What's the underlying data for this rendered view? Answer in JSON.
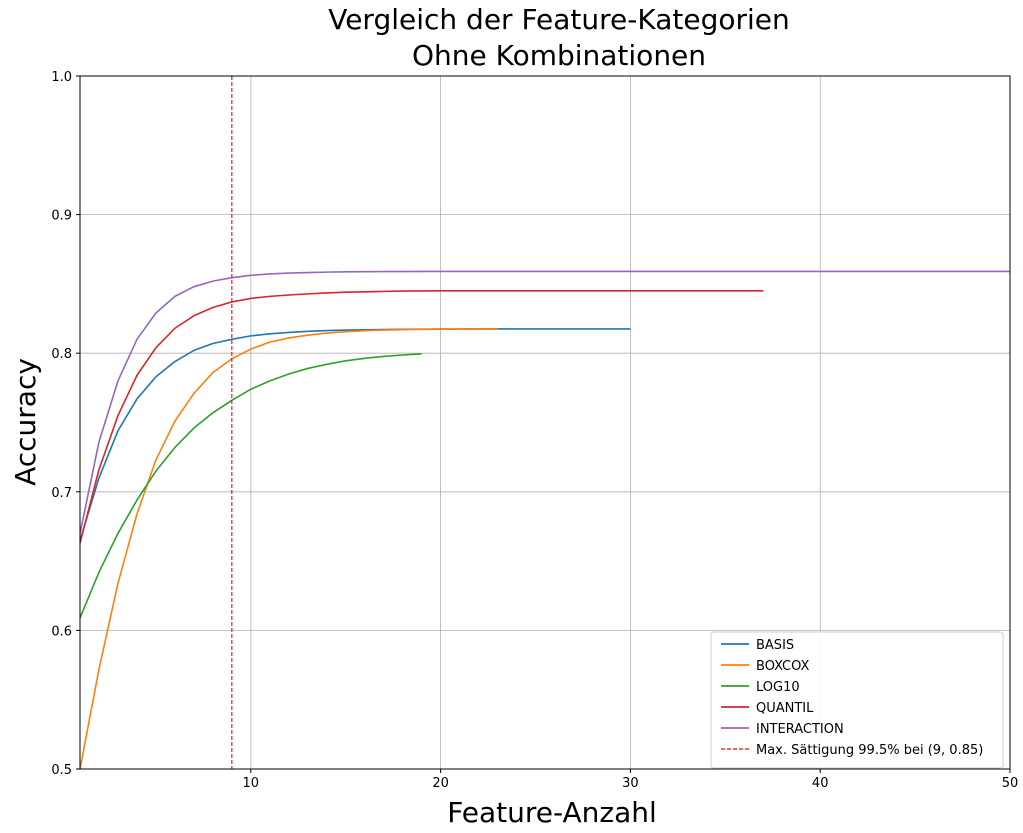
{
  "chart_data": {
    "type": "line",
    "title_lines": [
      "Vergleich der Feature-Kategorien",
      "Ohne Kombinationen"
    ],
    "xlabel": "Feature-Anzahl",
    "ylabel": "Accuracy",
    "xlim": [
      1,
      50
    ],
    "ylim": [
      0.5,
      1.0
    ],
    "xticks": [
      10,
      20,
      30,
      40,
      50
    ],
    "yticks": [
      0.5,
      0.6,
      0.7,
      0.8,
      0.9,
      1.0
    ],
    "ytick_labels": [
      "0.5",
      "0.6",
      "0.7",
      "0.8",
      "0.9",
      "1.0"
    ],
    "grid": true,
    "legend_position": "lower-right",
    "series": [
      {
        "name": "BASIS",
        "color": "#1f77b4",
        "x": [
          1,
          2,
          3,
          4,
          5,
          6,
          7,
          8,
          9,
          10,
          11,
          12,
          13,
          14,
          15,
          16,
          17,
          18,
          19,
          20,
          21,
          22,
          23,
          24,
          25,
          26,
          27,
          28,
          29,
          30
        ],
        "y": [
          0.665,
          0.71,
          0.744,
          0.767,
          0.783,
          0.794,
          0.802,
          0.807,
          0.81,
          0.8125,
          0.814,
          0.815,
          0.8158,
          0.8163,
          0.8167,
          0.8169,
          0.8171,
          0.8172,
          0.8173,
          0.8174,
          0.8174,
          0.8175,
          0.8175,
          0.8175,
          0.8175,
          0.8175,
          0.8175,
          0.8175,
          0.8175,
          0.8175
        ]
      },
      {
        "name": "BOXCOX",
        "color": "#ff7f0e",
        "x": [
          1,
          2,
          3,
          4,
          5,
          6,
          7,
          8,
          9,
          10,
          11,
          12,
          13,
          14,
          15,
          16,
          17,
          18,
          19,
          20,
          21,
          22,
          23
        ],
        "y": [
          0.5,
          0.572,
          0.634,
          0.684,
          0.723,
          0.751,
          0.771,
          0.786,
          0.796,
          0.803,
          0.808,
          0.811,
          0.813,
          0.8145,
          0.8155,
          0.8162,
          0.8167,
          0.817,
          0.8172,
          0.8173,
          0.8174,
          0.8175,
          0.8175
        ]
      },
      {
        "name": "LOG10",
        "color": "#2ca02c",
        "x": [
          1,
          2,
          3,
          4,
          5,
          6,
          7,
          8,
          9,
          10,
          11,
          12,
          13,
          14,
          15,
          16,
          17,
          18,
          19
        ],
        "y": [
          0.609,
          0.642,
          0.67,
          0.694,
          0.715,
          0.732,
          0.746,
          0.757,
          0.766,
          0.774,
          0.78,
          0.785,
          0.789,
          0.792,
          0.7945,
          0.7963,
          0.7977,
          0.7987,
          0.7995
        ]
      },
      {
        "name": "QUANTIL",
        "color": "#d62728",
        "x": [
          1,
          2,
          3,
          4,
          5,
          6,
          7,
          8,
          9,
          10,
          11,
          12,
          13,
          14,
          15,
          16,
          17,
          18,
          19,
          20,
          21,
          22,
          23,
          24,
          25,
          26,
          27,
          28,
          29,
          30,
          31,
          32,
          33,
          34,
          35,
          36,
          37
        ],
        "y": [
          0.663,
          0.716,
          0.755,
          0.784,
          0.804,
          0.818,
          0.827,
          0.833,
          0.837,
          0.8395,
          0.841,
          0.842,
          0.8428,
          0.8435,
          0.844,
          0.8443,
          0.8446,
          0.8448,
          0.8449,
          0.845,
          0.845,
          0.845,
          0.845,
          0.845,
          0.845,
          0.845,
          0.845,
          0.845,
          0.845,
          0.845,
          0.845,
          0.845,
          0.845,
          0.845,
          0.845,
          0.845,
          0.845
        ]
      },
      {
        "name": "INTERACTION",
        "color": "#9467bd",
        "x": [
          1,
          2,
          3,
          4,
          5,
          6,
          7,
          8,
          9,
          10,
          11,
          12,
          13,
          14,
          15,
          16,
          17,
          18,
          19,
          20,
          25,
          30,
          35,
          40,
          45,
          50
        ],
        "y": [
          0.67,
          0.736,
          0.78,
          0.81,
          0.829,
          0.841,
          0.848,
          0.852,
          0.8545,
          0.8562,
          0.8572,
          0.8578,
          0.8582,
          0.8585,
          0.8587,
          0.8588,
          0.8589,
          0.8589,
          0.859,
          0.859,
          0.859,
          0.859,
          0.859,
          0.859,
          0.859,
          0.859
        ]
      }
    ],
    "annotations": [
      {
        "type": "vline",
        "x": 9,
        "style": "dashed",
        "color": "#ff0000",
        "label": "Max. Sättigung 99.5% bei (9, 0.85)"
      }
    ]
  }
}
